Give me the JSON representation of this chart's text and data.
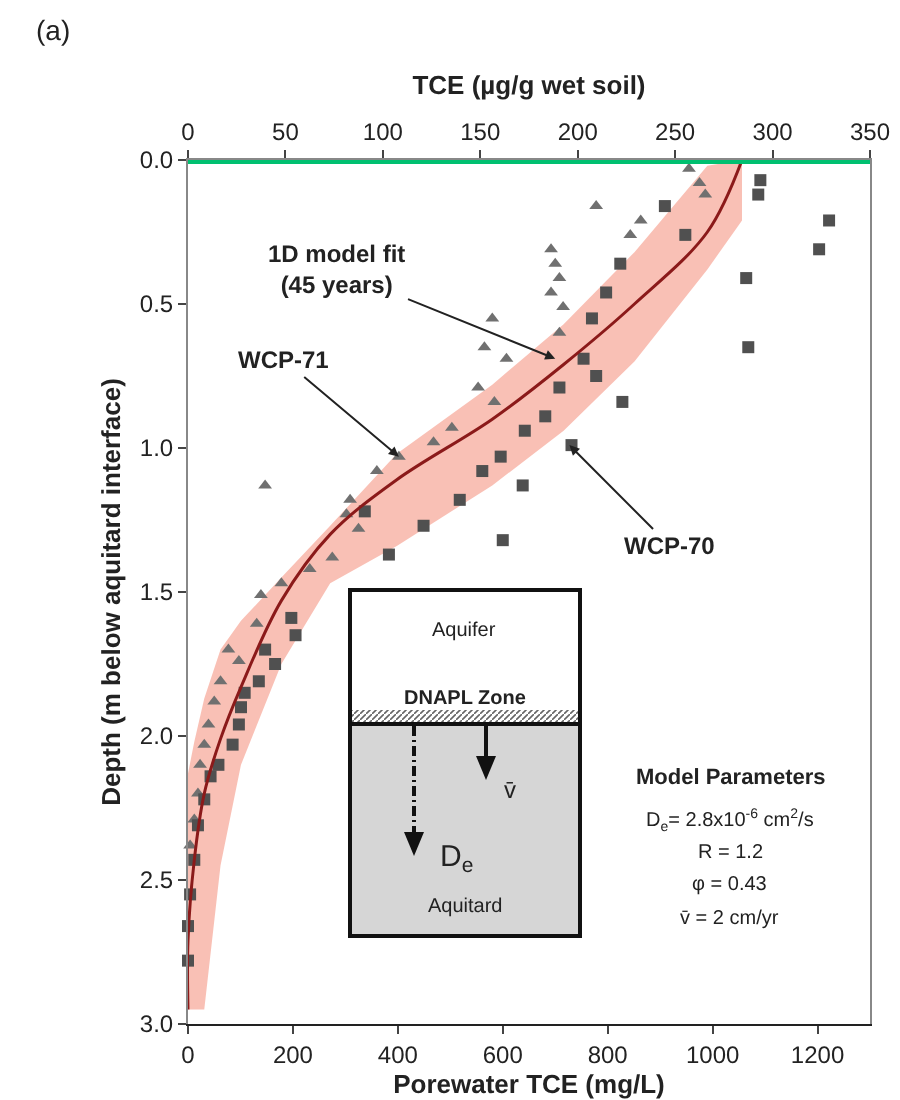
{
  "chart_data": {
    "type": "scatter",
    "xlabel": "Porewater TCE (mg/L)",
    "x2label": "TCE (µg/g wet soil)",
    "ylabel": "Depth (m below aquitard interface)",
    "xlim": [
      0,
      1300
    ],
    "xticks": [
      0,
      200,
      400,
      600,
      800,
      1000,
      1200
    ],
    "x2lim": [
      0,
      350
    ],
    "x2ticks": [
      0,
      50,
      100,
      150,
      200,
      250,
      300,
      350
    ],
    "ylim": [
      3,
      0
    ],
    "yticks": [
      {
        "value": 0,
        "label": "0.0"
      },
      0.5,
      {
        "value": 1,
        "label": "1.0"
      },
      1.5,
      {
        "value": 2,
        "label": "2.0"
      },
      2.5,
      {
        "value": 3,
        "label": "3.0"
      }
    ],
    "grid": false,
    "series": [
      {
        "marker": "triangle",
        "color": "#707070",
        "x": [
          955,
          975,
          986,
          778,
          863,
          843,
          692,
          700,
          708,
          692,
          715,
          580,
          708,
          565,
          607,
          553,
          584,
          503,
          468,
          402,
          360,
          147,
          309,
          302,
          325,
          275,
          232,
          178,
          139,
          131,
          77,
          97,
          62,
          50,
          39,
          31,
          23,
          19,
          12,
          4
        ],
        "values": [
          0.03,
          0.08,
          0.12,
          0.16,
          0.21,
          0.26,
          0.31,
          0.36,
          0.41,
          0.46,
          0.51,
          0.55,
          0.6,
          0.65,
          0.69,
          0.79,
          0.84,
          0.93,
          0.98,
          1.03,
          1.08,
          1.13,
          1.18,
          1.23,
          1.28,
          1.38,
          1.42,
          1.47,
          1.51,
          1.61,
          1.7,
          1.74,
          1.81,
          1.88,
          1.96,
          2.03,
          2.1,
          2.2,
          2.29,
          2.38
        ]
      },
      {
        "marker": "square",
        "color": "#505050",
        "x": [
          1091,
          1087,
          1222,
          1203,
          909,
          948,
          824,
          1064,
          797,
          770,
          1068,
          754,
          778,
          708,
          828,
          681,
          642,
          731,
          596,
          561,
          638,
          518,
          337,
          449,
          600,
          383,
          197,
          205,
          147,
          166,
          135,
          108,
          101,
          97,
          85,
          58,
          43,
          31,
          19,
          12,
          4,
          0,
          0
        ],
        "values": [
          0.07,
          0.12,
          0.21,
          0.31,
          0.16,
          0.26,
          0.36,
          0.41,
          0.46,
          0.55,
          0.65,
          0.69,
          0.75,
          0.79,
          0.84,
          0.89,
          0.94,
          0.99,
          1.03,
          1.08,
          1.13,
          1.18,
          1.22,
          1.27,
          1.32,
          1.37,
          1.59,
          1.65,
          1.7,
          1.75,
          1.81,
          1.85,
          1.9,
          1.96,
          2.03,
          2.1,
          2.14,
          2.22,
          2.31,
          2.43,
          2.55,
          2.66,
          2.78
        ]
      },
      {
        "type": "line",
        "marker": "none",
        "line_style": "solid",
        "color": "#8b1a1a",
        "x": [
          1056,
          990,
          851,
          716,
          580,
          398,
          271,
          178,
          101,
          62,
          31,
          12,
          0,
          0
        ],
        "values": [
          0,
          0.25,
          0.5,
          0.71,
          0.9,
          1.11,
          1.3,
          1.53,
          1.83,
          2.01,
          2.2,
          2.43,
          2.71,
          2.95
        ],
        "lower": [
          0,
          0.02,
          0.32,
          0.57,
          0.78,
          1.02,
          1.27,
          1.45,
          1.6,
          1.7,
          1.87,
          2.02,
          2.13,
          2.13
        ],
        "upper": [
          0.21,
          0.38,
          0.7,
          0.94,
          1.13,
          1.34,
          1.47,
          1.75,
          2.1,
          2.45,
          2.95,
          2.95,
          2.95,
          2.95
        ]
      }
    ],
    "ref_lines": [
      {
        "axis": "y",
        "value": 0,
        "color": "#00c070"
      }
    ],
    "annotations": [
      "(a)",
      {
        "text": "1D model fit\n(45 years)",
        "x": 700,
        "y": 0.69
      },
      {
        "text": "WCP-71",
        "x": 402,
        "y": 1.03
      },
      {
        "text": "WCP-70",
        "x": 727,
        "y": 0.99
      },
      "Model Parameters",
      "D$_{e}$= 2.8x10$^{-6}$ cm$^{2}$/s",
      "R = 1.2",
      "φ = 0.43",
      "v̄ = 2 cm/yr",
      "Aquifer",
      "DNAPL Zone",
      "v̄",
      "D$_{e}$",
      "Aquitard"
    ]
  }
}
